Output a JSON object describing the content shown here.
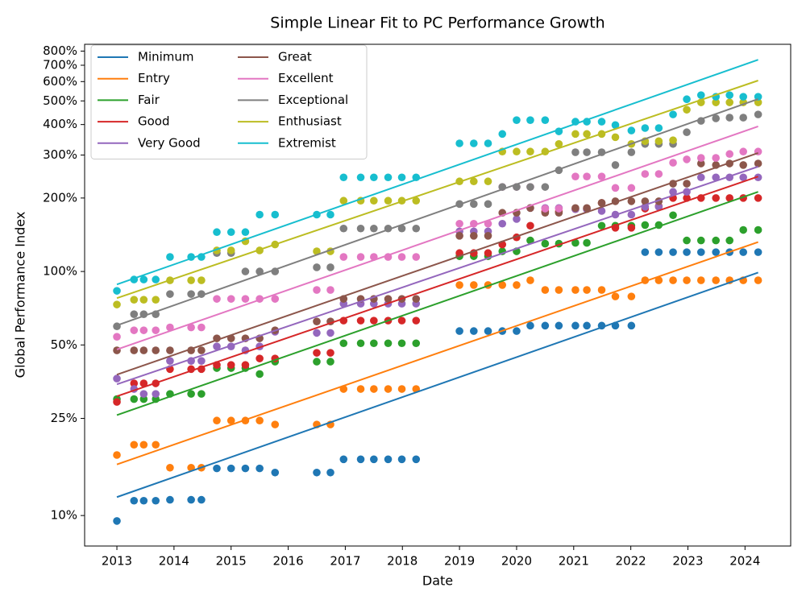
{
  "chart_data": {
    "type": "scatter",
    "title": "Simple Linear Fit to PC Performance Growth",
    "x_label": "Date",
    "y_label": "Global Performance Index",
    "log_y": true,
    "legend": "upper left",
    "x": [
      2013.0,
      2013.3,
      2013.47,
      2013.68,
      2013.93,
      2014.3,
      2014.48,
      2014.75,
      2015.0,
      2015.25,
      2015.5,
      2015.77,
      2016.5,
      2016.74,
      2016.97,
      2017.27,
      2017.5,
      2017.75,
      2017.99,
      2018.24,
      2019.0,
      2019.25,
      2019.5,
      2019.75,
      2020.0,
      2020.24,
      2020.5,
      2020.74,
      2021.03,
      2021.23,
      2021.49,
      2021.73,
      2022.01,
      2022.25,
      2022.49,
      2022.74,
      2022.98,
      2023.23,
      2023.49,
      2023.73,
      2023.97,
      2024.23
    ],
    "fit_x": [
      2013.0,
      2024.23
    ],
    "series": [
      {
        "name": "Minimum",
        "color": "#1f77b4",
        "fit_values": [
          11.9,
          99
        ],
        "values": [
          9.5,
          11.5,
          11.5,
          11.5,
          11.6,
          11.6,
          11.6,
          15.6,
          15.6,
          15.6,
          15.6,
          15,
          15,
          15,
          17,
          17,
          17,
          17,
          17,
          17,
          57,
          57,
          57,
          57,
          57,
          60,
          60,
          60,
          60,
          60,
          60,
          60,
          60,
          120,
          120,
          120,
          120,
          120,
          120,
          120,
          120,
          120
        ]
      },
      {
        "name": "Entry",
        "color": "#ff7f0e",
        "fit_values": [
          16.2,
          132
        ],
        "values": [
          17.7,
          19.5,
          19.5,
          19.5,
          15.7,
          15.7,
          15.7,
          24.5,
          24.5,
          24.5,
          24.5,
          23.6,
          23.6,
          23.6,
          33,
          33,
          33,
          33,
          33,
          33,
          88,
          88,
          88,
          88,
          88,
          92,
          84,
          84,
          84,
          84,
          84,
          79,
          79,
          92,
          92,
          92,
          92,
          92,
          92,
          92,
          92,
          92
        ]
      },
      {
        "name": "Fair",
        "color": "#2ca02c",
        "fit_values": [
          25.8,
          212
        ],
        "values": [
          30,
          30,
          30,
          30,
          31.5,
          31.5,
          31.5,
          40.2,
          40.2,
          40.2,
          38,
          42.7,
          42.7,
          42.7,
          50.8,
          50.8,
          50.8,
          50.8,
          50.8,
          50.8,
          115.5,
          115.5,
          115.5,
          121,
          121,
          134,
          130,
          130,
          131,
          131,
          154,
          154,
          154,
          155,
          155,
          170,
          134,
          134,
          134,
          134,
          148,
          148
        ]
      },
      {
        "name": "Good",
        "color": "#d62728",
        "fit_values": [
          30.8,
          245
        ],
        "values": [
          29.2,
          34.8,
          34.8,
          34.8,
          39.8,
          39.8,
          39.8,
          41.4,
          41.4,
          41.4,
          44,
          44,
          46.4,
          46.4,
          62.9,
          62.9,
          62.9,
          62.9,
          62.9,
          62.9,
          119,
          119,
          119,
          129,
          138,
          154,
          176,
          176,
          180,
          180,
          191,
          151,
          151,
          181,
          185,
          200,
          200,
          200,
          200,
          200,
          200,
          200
        ]
      },
      {
        "name": "Very Good",
        "color": "#9467bd",
        "fit_values": [
          34.5,
          269
        ],
        "values": [
          36.4,
          33,
          31.5,
          31.5,
          43,
          43,
          43,
          49.3,
          49.3,
          47.5,
          49.3,
          56.6,
          56,
          56,
          73.8,
          73.8,
          73.8,
          73.8,
          73.8,
          73.8,
          146,
          146,
          146,
          157,
          164,
          182,
          182,
          182,
          180,
          180,
          177,
          171,
          171,
          184,
          184,
          212,
          212,
          243,
          243,
          243,
          243,
          243
        ]
      },
      {
        "name": "Great",
        "color": "#8c564b",
        "fit_values": [
          37.8,
          306
        ],
        "values": [
          47.5,
          47.5,
          47.5,
          47.5,
          47.5,
          47.5,
          47.5,
          53.2,
          53.2,
          53.2,
          53.2,
          57.4,
          62.4,
          62.4,
          77.2,
          77.2,
          77.2,
          77.2,
          77.2,
          77.2,
          140,
          140,
          140,
          174,
          174,
          182,
          174,
          174,
          182,
          182,
          191,
          194,
          194,
          194,
          194,
          229,
          229,
          277,
          273,
          277,
          273,
          277
        ]
      },
      {
        "name": "Excellent",
        "color": "#e377c2",
        "fit_values": [
          47.9,
          393
        ],
        "values": [
          54,
          57.4,
          57.4,
          57.4,
          59,
          59,
          59,
          77.2,
          77.2,
          77.2,
          77.2,
          77.2,
          84,
          84,
          114.7,
          114.7,
          114.7,
          114.7,
          114.7,
          114.7,
          157,
          157,
          157,
          222,
          222,
          222,
          181,
          181,
          245,
          245,
          245,
          220,
          220,
          251,
          251,
          279,
          288,
          292,
          292,
          303,
          310,
          310
        ]
      },
      {
        "name": "Exceptional",
        "color": "#7f7f7f",
        "fit_values": [
          60.1,
          509
        ],
        "values": [
          59.6,
          66.8,
          66.8,
          66.8,
          80.8,
          80.8,
          80.8,
          119,
          119,
          100,
          100,
          100,
          104,
          104,
          150,
          150,
          150,
          150,
          150,
          150,
          189,
          189,
          189,
          222,
          222,
          222,
          222,
          260,
          308,
          308,
          308,
          273,
          308,
          333,
          333,
          333,
          372,
          414,
          424,
          427,
          427,
          440
        ]
      },
      {
        "name": "Enthusiast",
        "color": "#bcbd22",
        "fit_values": [
          77.8,
          606
        ],
        "values": [
          73.2,
          76.6,
          76.6,
          76.6,
          92,
          92,
          92,
          122,
          122,
          133,
          122,
          129,
          121,
          121,
          195,
          195,
          195,
          195,
          195,
          195,
          234,
          234,
          234,
          310,
          310,
          310,
          310,
          333,
          366,
          366,
          366,
          355,
          333,
          342,
          342,
          345,
          460,
          493,
          493,
          493,
          493,
          493
        ]
      },
      {
        "name": "Extremist",
        "color": "#17becf",
        "fit_values": [
          88.5,
          737
        ],
        "values": [
          83.3,
          92.7,
          92.7,
          92.7,
          114.7,
          114.7,
          114.7,
          145,
          145,
          145,
          171,
          171,
          171,
          171,
          243,
          243,
          243,
          243,
          243,
          243,
          335,
          335,
          335,
          366,
          417,
          417,
          417,
          375,
          411,
          411,
          411,
          398,
          378,
          387,
          387,
          440,
          508,
          528,
          520,
          528,
          520,
          520
        ]
      }
    ],
    "xlim": [
      2012.435,
      2024.8
    ],
    "xticks": [
      2013,
      2014,
      2015,
      2016,
      2017,
      2018,
      2019,
      2020,
      2021,
      2022,
      2023,
      2024
    ],
    "ylim": [
      7.5,
      853
    ],
    "yticks": [
      {
        "value": 10,
        "label": "10%"
      },
      {
        "value": 25,
        "label": "25%"
      },
      {
        "value": 50,
        "label": "50%"
      },
      {
        "value": 100,
        "label": "100%"
      },
      {
        "value": 200,
        "label": "200%"
      },
      {
        "value": 300,
        "label": "300%"
      },
      {
        "value": 400,
        "label": "400%"
      },
      {
        "value": 500,
        "label": "500%"
      },
      {
        "value": 600,
        "label": "600%"
      },
      {
        "value": 700,
        "label": "700%"
      },
      {
        "value": 800,
        "label": "800%"
      }
    ]
  }
}
